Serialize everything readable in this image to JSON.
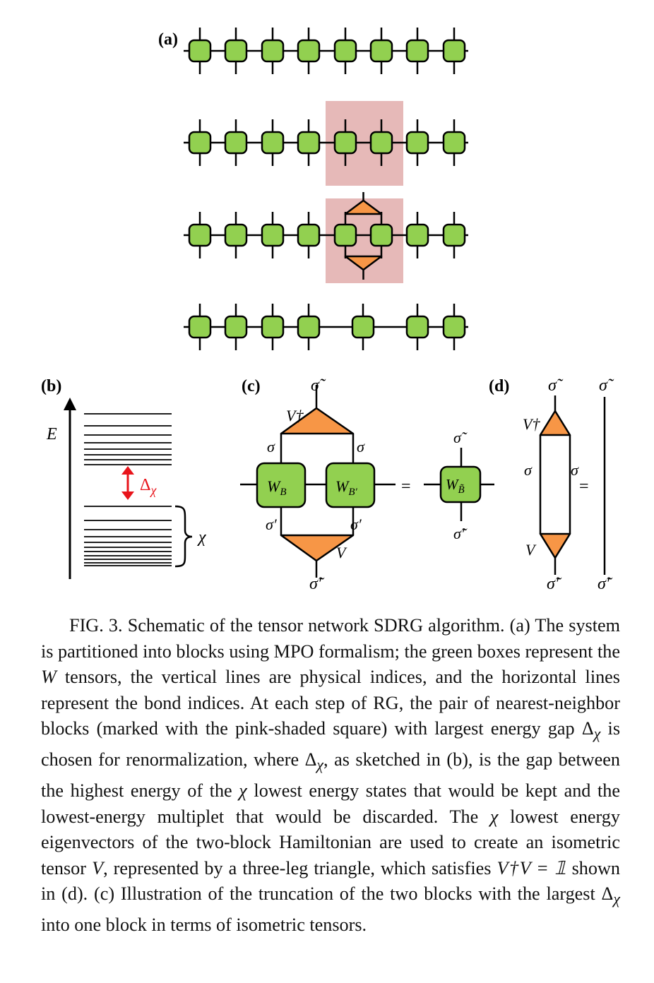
{
  "panels": {
    "a": {
      "label": "(a)"
    },
    "b": {
      "label": "(b)",
      "axis_label": "E",
      "gap_label": "Δ",
      "gap_sub": "χ",
      "brace_label": "χ"
    },
    "c": {
      "label": "(c)",
      "sigma_tilde": "σ̃",
      "sigma_tilde_prime": "σ̃′",
      "sigma": "σ",
      "sigma_prime": "σ′",
      "v_dagger": "V†",
      "v": "V",
      "wb": "W",
      "wb_sub": "B",
      "wbp_sub": "B′",
      "wbt_sub": "B̃",
      "equals": "="
    },
    "d": {
      "label": "(d)",
      "sigma_tilde": "σ̃",
      "sigma_tilde_prime": "σ̃′",
      "sigma": "σ",
      "v_dagger": "V†",
      "v": "V",
      "equals": "="
    }
  },
  "colors": {
    "tensor_green": "#92d050",
    "isometry_orange": "#f79646",
    "highlight_pink": "#e6b9b8",
    "gap_arrow": "#e8141b"
  },
  "caption": {
    "fig": "FIG. 3.",
    "t1": " Schematic of the tensor network SDRG algorithm. (a) The system is partitioned into blocks using MPO formalism; the green boxes represent the ",
    "W": "W",
    "t2": " tensors, the vertical lines are physical indices, and the horizontal lines represent the bond indices. At each step of RG, the pair of nearest-neighbor blocks (marked with the pink-shaded square) with largest energy gap ",
    "D1": "Δ",
    "chi1": "χ",
    "t3": " is chosen for renormalization, where ",
    "D2": "Δ",
    "chi2": "χ",
    "t4": ", as sketched in (b), is the gap between the highest energy of the ",
    "chi3": "χ",
    "t5": " lowest energy states that would be kept and the lowest-energy multiplet that would be discarded. The ",
    "chi4": "χ",
    "t6": " lowest energy eigenvectors of the two-block Hamiltonian are used to create an isometric tensor ",
    "V1": "V",
    "t7": ", represented by a three-leg triangle, which satisfies ",
    "eq": "V†V = 𝟙",
    "t8": " shown in (d). (c) Illustration of the truncation of the two blocks with the largest ",
    "D3": "Δ",
    "chi5": "χ",
    "t9": " into one block in terms of isometric tensors."
  }
}
